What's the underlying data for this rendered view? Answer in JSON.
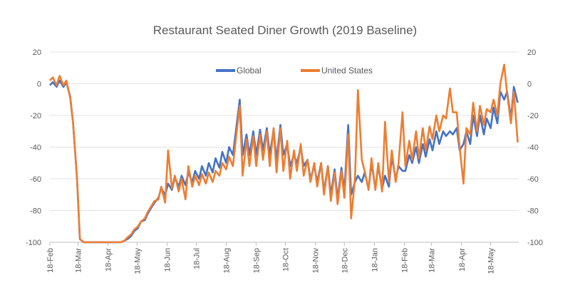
{
  "chart_data": {
    "type": "line",
    "title": "Restaurant Seated Diner Growth (2019 Baseline)",
    "xlabel": "",
    "ylabel": "",
    "ylim": [
      -100,
      20
    ],
    "y_ticks": [
      "20",
      "0",
      "-20",
      "-40",
      "-60",
      "-80",
      "-100"
    ],
    "secondary_y_axis": true,
    "grid": "horizontal",
    "legend": "top-center",
    "x_range": [
      "2020-02-18",
      "2021-06-16"
    ],
    "x_ticks": [
      {
        "date": "2020-02-18",
        "label": "18-Feb"
      },
      {
        "date": "2020-03-18",
        "label": "18-Mar"
      },
      {
        "date": "2020-04-18",
        "label": "18-Apr"
      },
      {
        "date": "2020-05-18",
        "label": "18-May"
      },
      {
        "date": "2020-06-18",
        "label": "18-Jun"
      },
      {
        "date": "2020-07-18",
        "label": "18-Jul"
      },
      {
        "date": "2020-08-18",
        "label": "18-Aug"
      },
      {
        "date": "2020-09-18",
        "label": "18-Sep"
      },
      {
        "date": "2020-10-18",
        "label": "18-Oct"
      },
      {
        "date": "2020-11-18",
        "label": "18-Nov"
      },
      {
        "date": "2020-12-18",
        "label": "18-Dec"
      },
      {
        "date": "2021-01-18",
        "label": "18-Jan"
      },
      {
        "date": "2021-02-18",
        "label": "18-Feb"
      },
      {
        "date": "2021-03-18",
        "label": "18-Mar"
      },
      {
        "date": "2021-04-18",
        "label": "18-Apr"
      },
      {
        "date": "2021-05-18",
        "label": "18-May"
      }
    ],
    "x": [
      "2020-02-18",
      "2020-02-21",
      "2020-02-25",
      "2020-02-28",
      "2020-03-03",
      "2020-03-06",
      "2020-03-10",
      "2020-03-13",
      "2020-03-17",
      "2020-03-20",
      "2020-03-24",
      "2020-03-27",
      "2020-03-31",
      "2020-04-03",
      "2020-04-07",
      "2020-04-10",
      "2020-04-14",
      "2020-04-17",
      "2020-04-21",
      "2020-04-24",
      "2020-04-28",
      "2020-05-01",
      "2020-05-05",
      "2020-05-08",
      "2020-05-12",
      "2020-05-15",
      "2020-05-19",
      "2020-05-22",
      "2020-05-26",
      "2020-05-29",
      "2020-06-02",
      "2020-06-05",
      "2020-06-09",
      "2020-06-12",
      "2020-06-16",
      "2020-06-19",
      "2020-06-23",
      "2020-06-26",
      "2020-06-30",
      "2020-07-03",
      "2020-07-07",
      "2020-07-10",
      "2020-07-14",
      "2020-07-17",
      "2020-07-21",
      "2020-07-24",
      "2020-07-28",
      "2020-07-31",
      "2020-08-04",
      "2020-08-07",
      "2020-08-11",
      "2020-08-14",
      "2020-08-18",
      "2020-08-21",
      "2020-08-25",
      "2020-08-28",
      "2020-09-01",
      "2020-09-04",
      "2020-09-08",
      "2020-09-11",
      "2020-09-15",
      "2020-09-18",
      "2020-09-22",
      "2020-09-25",
      "2020-09-29",
      "2020-10-02",
      "2020-10-06",
      "2020-10-09",
      "2020-10-13",
      "2020-10-16",
      "2020-10-20",
      "2020-10-23",
      "2020-10-27",
      "2020-10-30",
      "2020-11-03",
      "2020-11-06",
      "2020-11-10",
      "2020-11-13",
      "2020-11-17",
      "2020-11-20",
      "2020-11-24",
      "2020-11-27",
      "2020-12-01",
      "2020-12-04",
      "2020-12-08",
      "2020-12-11",
      "2020-12-15",
      "2020-12-18",
      "2020-12-22",
      "2020-12-25",
      "2020-12-29",
      "2021-01-01",
      "2021-01-05",
      "2021-01-08",
      "2021-01-12",
      "2021-01-15",
      "2021-01-19",
      "2021-01-22",
      "2021-01-26",
      "2021-01-29",
      "2021-02-02",
      "2021-02-05",
      "2021-02-09",
      "2021-02-12",
      "2021-02-16",
      "2021-02-19",
      "2021-02-23",
      "2021-02-26",
      "2021-03-02",
      "2021-03-05",
      "2021-03-09",
      "2021-03-12",
      "2021-03-16",
      "2021-03-19",
      "2021-03-23",
      "2021-03-26",
      "2021-03-30",
      "2021-04-02",
      "2021-04-06",
      "2021-04-09",
      "2021-04-13",
      "2021-04-16",
      "2021-04-20",
      "2021-04-23",
      "2021-04-27",
      "2021-04-30",
      "2021-05-04",
      "2021-05-07",
      "2021-05-11",
      "2021-05-14",
      "2021-05-18",
      "2021-05-21",
      "2021-05-25",
      "2021-05-28",
      "2021-06-01",
      "2021-06-04",
      "2021-06-08",
      "2021-06-11",
      "2021-06-15"
    ],
    "series": [
      {
        "name": "Global",
        "color": "#4472C4",
        "values": [
          -1,
          1,
          -2,
          2,
          -2,
          1,
          -8,
          -25,
          -60,
          -98,
          -100,
          -100,
          -100,
          -100,
          -100,
          -100,
          -100,
          -100,
          -100,
          -100,
          -100,
          -100,
          -99,
          -98,
          -96,
          -93,
          -91,
          -87,
          -86,
          -82,
          -78,
          -75,
          -72,
          -66,
          -70,
          -63,
          -67,
          -59,
          -65,
          -58,
          -64,
          -56,
          -62,
          -55,
          -60,
          -52,
          -58,
          -50,
          -56,
          -47,
          -53,
          -43,
          -50,
          -40,
          -45,
          -30,
          -10,
          -45,
          -32,
          -45,
          -30,
          -45,
          -29,
          -42,
          -28,
          -45,
          -29,
          -48,
          -26,
          -45,
          -38,
          -52,
          -45,
          -50,
          -40,
          -52,
          -48,
          -60,
          -52,
          -62,
          -50,
          -68,
          -52,
          -70,
          -54,
          -73,
          -53,
          -68,
          -26,
          -70,
          -62,
          -58,
          -62,
          -56,
          -66,
          -50,
          -66,
          -52,
          -66,
          -58,
          -65,
          -46,
          -60,
          -52,
          -55,
          -55,
          -45,
          -50,
          -40,
          -50,
          -38,
          -46,
          -35,
          -42,
          -30,
          -38,
          -30,
          -33,
          -30,
          -32,
          -28,
          -42,
          -38,
          -30,
          -38,
          -20,
          -33,
          -20,
          -32,
          -22,
          -28,
          -15,
          -25,
          -5,
          -10,
          -5,
          -22,
          -2,
          -12
        ]
      },
      {
        "name": "United States",
        "color": "#ED7D31",
        "values": [
          2,
          4,
          -1,
          5,
          -1,
          2,
          -9,
          -25,
          -60,
          -98,
          -100,
          -100,
          -100,
          -100,
          -100,
          -100,
          -100,
          -100,
          -100,
          -100,
          -100,
          -100,
          -99,
          -97,
          -95,
          -92,
          -90,
          -87,
          -85,
          -81,
          -77,
          -74,
          -73,
          -65,
          -75,
          -42,
          -66,
          -58,
          -68,
          -60,
          -73,
          -52,
          -65,
          -58,
          -64,
          -57,
          -63,
          -56,
          -62,
          -55,
          -58,
          -50,
          -54,
          -46,
          -52,
          -35,
          -14,
          -58,
          -35,
          -52,
          -33,
          -52,
          -32,
          -48,
          -30,
          -52,
          -28,
          -56,
          -28,
          -55,
          -36,
          -60,
          -42,
          -55,
          -38,
          -58,
          -48,
          -62,
          -50,
          -65,
          -50,
          -70,
          -52,
          -74,
          -56,
          -76,
          -55,
          -72,
          -32,
          -85,
          -60,
          -4,
          -48,
          -55,
          -67,
          -47,
          -67,
          -50,
          -68,
          -24,
          -62,
          -42,
          -62,
          -50,
          -18,
          -52,
          -36,
          -48,
          -30,
          -47,
          -28,
          -42,
          -27,
          -35,
          -20,
          -30,
          -20,
          -22,
          -3,
          -18,
          -18,
          -40,
          -63,
          -28,
          -32,
          -12,
          -30,
          -14,
          -26,
          -16,
          -18,
          -10,
          -20,
          0,
          12,
          -6,
          -25,
          -5,
          -37
        ]
      }
    ]
  }
}
